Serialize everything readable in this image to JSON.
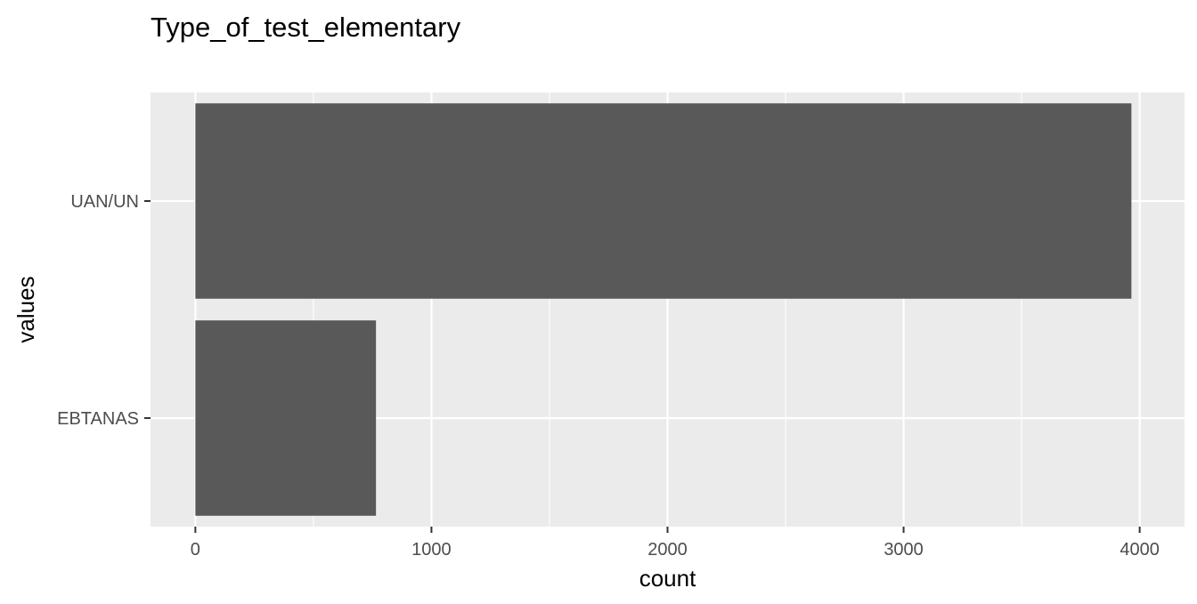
{
  "chart_data": {
    "type": "bar",
    "orientation": "horizontal",
    "title": "Type_of_test_elementary",
    "xlabel": "count",
    "ylabel": "values",
    "categories": [
      "UAN/UN",
      "EBTANAS"
    ],
    "values": [
      3965,
      765
    ],
    "xlim": [
      -190,
      4190
    ],
    "x_ticks": [
      0,
      1000,
      2000,
      3000,
      4000
    ],
    "x_tick_labels": [
      "0",
      "1000",
      "2000",
      "3000",
      "4000"
    ],
    "grid": true,
    "legend": "none",
    "colors": {
      "bar": "#595959",
      "panel_background": "#ebebeb",
      "grid_line": "#ffffff",
      "tick_text": "#4d4d4d",
      "axis_tick": "#333333"
    }
  }
}
